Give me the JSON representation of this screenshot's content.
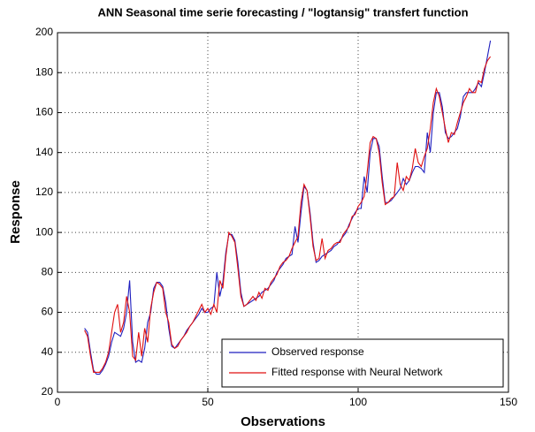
{
  "chart_data": {
    "type": "line",
    "title": "ANN Seasonal time serie forecasting / \"logtansig\" transfert function",
    "xlabel": "Observations",
    "ylabel": "Response",
    "x": [
      9,
      10,
      11,
      12,
      13,
      14,
      15,
      16,
      17,
      18,
      19,
      20,
      21,
      22,
      23,
      24,
      25,
      26,
      27,
      28,
      29,
      30,
      31,
      32,
      33,
      34,
      35,
      36,
      37,
      38,
      39,
      40,
      41,
      42,
      43,
      44,
      45,
      46,
      47,
      48,
      49,
      50,
      51,
      52,
      53,
      54,
      55,
      56,
      57,
      58,
      59,
      60,
      61,
      62,
      63,
      64,
      65,
      66,
      67,
      68,
      69,
      70,
      71,
      72,
      73,
      74,
      75,
      76,
      77,
      78,
      79,
      80,
      81,
      82,
      83,
      84,
      85,
      86,
      87,
      88,
      89,
      90,
      91,
      92,
      93,
      94,
      95,
      96,
      97,
      98,
      99,
      100,
      101,
      102,
      103,
      104,
      105,
      106,
      107,
      108,
      109,
      110,
      111,
      112,
      113,
      114,
      115,
      116,
      117,
      118,
      119,
      120,
      121,
      122,
      123,
      124,
      125,
      126,
      127,
      128,
      129,
      130,
      131,
      132,
      133,
      134,
      135,
      136,
      137,
      138,
      139,
      140,
      141,
      142,
      143,
      144
    ],
    "series": [
      {
        "name": "Observed response",
        "color": "#1f1fbf",
        "values": [
          52,
          50,
          40,
          31,
          29,
          29,
          31,
          34,
          38,
          45,
          50,
          49,
          48,
          52,
          60,
          76,
          45,
          35,
          36,
          35,
          42,
          55,
          60,
          72,
          75,
          75,
          73,
          65,
          52,
          43,
          42,
          44,
          46,
          48,
          51,
          53,
          55,
          57,
          59,
          62,
          60,
          60,
          62,
          63,
          80,
          68,
          75,
          90,
          99,
          99,
          96,
          85,
          70,
          63,
          64,
          65,
          66,
          67,
          68,
          70,
          71,
          72,
          74,
          76,
          80,
          82,
          84,
          87,
          88,
          89,
          103,
          95,
          110,
          123,
          121,
          110,
          95,
          85,
          86,
          88,
          89,
          90,
          91,
          93,
          94,
          96,
          98,
          100,
          104,
          107,
          110,
          112,
          112,
          128,
          120,
          140,
          147,
          147,
          143,
          128,
          115,
          115,
          116,
          118,
          120,
          122,
          127,
          124,
          126,
          130,
          133,
          133,
          132,
          130,
          150,
          140,
          160,
          170,
          170,
          163,
          150,
          147,
          148,
          150,
          152,
          158,
          168,
          170,
          170,
          170,
          172,
          175,
          173,
          180,
          188,
          196
        ]
      },
      {
        "name": "Fitted response with Neural Network",
        "color": "#e01010",
        "values": [
          51,
          48,
          38,
          30,
          30,
          30,
          32,
          35,
          40,
          50,
          60,
          64,
          50,
          55,
          68,
          60,
          38,
          36,
          50,
          38,
          52,
          45,
          62,
          70,
          75,
          74,
          72,
          60,
          55,
          44,
          42,
          43,
          46,
          48,
          50,
          53,
          55,
          58,
          61,
          64,
          60,
          62,
          59,
          64,
          60,
          76,
          72,
          88,
          100,
          98,
          95,
          82,
          68,
          63,
          64,
          66,
          68,
          66,
          70,
          67,
          72,
          71,
          75,
          77,
          79,
          83,
          85,
          86,
          88,
          92,
          95,
          98,
          115,
          124,
          121,
          108,
          93,
          86,
          87,
          97,
          87,
          91,
          92,
          94,
          95,
          95,
          99,
          101,
          103,
          108,
          109,
          113,
          115,
          118,
          130,
          145,
          148,
          147,
          140,
          125,
          114,
          115,
          117,
          118,
          135,
          124,
          121,
          128,
          126,
          132,
          142,
          135,
          133,
          138,
          142,
          152,
          165,
          172,
          168,
          160,
          152,
          145,
          150,
          149,
          155,
          160,
          165,
          168,
          172,
          170,
          170,
          176,
          175,
          182,
          186,
          188
        ]
      }
    ],
    "xlim": [
      0,
      150
    ],
    "xticks": [
      0,
      50,
      100,
      150
    ],
    "ylim": [
      20,
      200
    ],
    "yticks": [
      20,
      40,
      60,
      80,
      100,
      120,
      140,
      160,
      180,
      200
    ],
    "grid": true,
    "legend": "lower right"
  }
}
